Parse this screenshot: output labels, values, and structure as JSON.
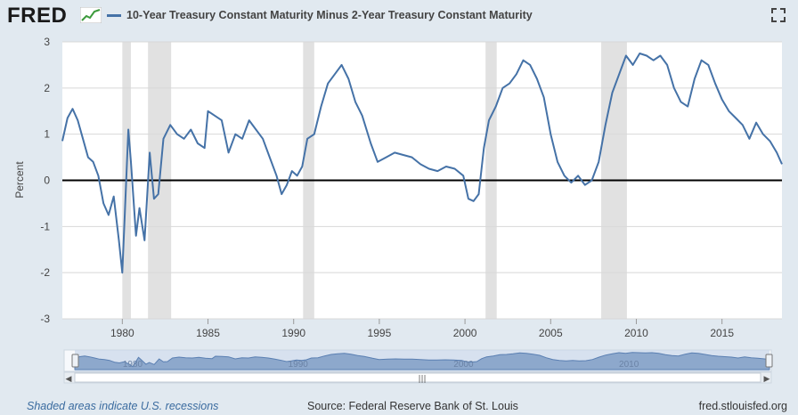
{
  "header": {
    "logo": "FRED",
    "legend_label": "10-Year Treasury Constant Maturity Minus 2-Year Treasury Constant Maturity",
    "series_color": "#4572a7"
  },
  "chart_data": {
    "type": "line",
    "title": "10-Year Treasury Constant Maturity Minus 2-Year Treasury Constant Maturity",
    "xlabel": "",
    "ylabel": "Percent",
    "xlim": [
      1976.5,
      2018.5
    ],
    "ylim": [
      -3,
      3
    ],
    "yticks": [
      -3,
      -2,
      -1,
      0,
      1,
      2,
      3
    ],
    "xticks": [
      1980,
      1985,
      1990,
      1995,
      2000,
      2005,
      2010,
      2015
    ],
    "grid": true,
    "recessions": [
      [
        1980.0,
        1980.5
      ],
      [
        1981.5,
        1982.85
      ],
      [
        1990.55,
        1991.2
      ],
      [
        2001.2,
        2001.85
      ],
      [
        2007.95,
        2009.45
      ]
    ],
    "series": [
      {
        "name": "10-Year Treasury Constant Maturity Minus 2-Year Treasury Constant Maturity",
        "color": "#4572a7",
        "x": [
          1976.5,
          1976.8,
          1977.1,
          1977.4,
          1977.7,
          1978.0,
          1978.3,
          1978.6,
          1978.9,
          1979.2,
          1979.5,
          1979.8,
          1980.0,
          1980.15,
          1980.35,
          1980.5,
          1980.8,
          1981.0,
          1981.3,
          1981.6,
          1981.85,
          1982.1,
          1982.4,
          1982.8,
          1983.2,
          1983.6,
          1984.0,
          1984.4,
          1984.8,
          1985.0,
          1985.4,
          1985.8,
          1986.2,
          1986.6,
          1987.0,
          1987.4,
          1987.8,
          1988.2,
          1988.6,
          1989.0,
          1989.3,
          1989.6,
          1989.9,
          1990.2,
          1990.5,
          1990.8,
          1991.2,
          1991.6,
          1992.0,
          1992.4,
          1992.8,
          1993.2,
          1993.6,
          1994.0,
          1994.5,
          1994.9,
          1995.4,
          1995.9,
          1996.4,
          1996.9,
          1997.4,
          1997.9,
          1998.4,
          1998.9,
          1999.4,
          1999.9,
          2000.2,
          2000.5,
          2000.8,
          2001.1,
          2001.4,
          2001.8,
          2002.2,
          2002.6,
          2003.0,
          2003.4,
          2003.8,
          2004.2,
          2004.6,
          2005.0,
          2005.4,
          2005.8,
          2006.2,
          2006.6,
          2007.0,
          2007.4,
          2007.8,
          2008.2,
          2008.6,
          2009.0,
          2009.4,
          2009.8,
          2010.2,
          2010.6,
          2011.0,
          2011.4,
          2011.8,
          2012.2,
          2012.6,
          2013.0,
          2013.4,
          2013.8,
          2014.2,
          2014.6,
          2015.0,
          2015.4,
          2015.8,
          2016.2,
          2016.6,
          2017.0,
          2017.4,
          2017.8,
          2018.2,
          2018.5
        ],
        "y": [
          0.85,
          1.35,
          1.55,
          1.3,
          0.9,
          0.5,
          0.4,
          0.1,
          -0.5,
          -0.75,
          -0.35,
          -1.3,
          -2.0,
          -0.7,
          1.1,
          0.4,
          -1.2,
          -0.6,
          -1.3,
          0.6,
          -0.4,
          -0.3,
          0.9,
          1.2,
          1.0,
          0.9,
          1.1,
          0.8,
          0.7,
          1.5,
          1.4,
          1.3,
          0.6,
          1.0,
          0.9,
          1.3,
          1.1,
          0.9,
          0.5,
          0.1,
          -0.3,
          -0.1,
          0.2,
          0.1,
          0.3,
          0.9,
          1.0,
          1.6,
          2.1,
          2.3,
          2.5,
          2.2,
          1.7,
          1.4,
          0.8,
          0.4,
          0.5,
          0.6,
          0.55,
          0.5,
          0.35,
          0.25,
          0.2,
          0.3,
          0.25,
          0.1,
          -0.4,
          -0.45,
          -0.3,
          0.7,
          1.3,
          1.6,
          2.0,
          2.1,
          2.3,
          2.6,
          2.5,
          2.2,
          1.8,
          1.0,
          0.4,
          0.1,
          -0.05,
          0.1,
          -0.1,
          0.0,
          0.4,
          1.2,
          1.9,
          2.3,
          2.7,
          2.5,
          2.75,
          2.7,
          2.6,
          2.7,
          2.5,
          2.0,
          1.7,
          1.6,
          2.2,
          2.6,
          2.5,
          2.1,
          1.75,
          1.5,
          1.35,
          1.2,
          0.9,
          1.25,
          1.0,
          0.85,
          0.6,
          0.35
        ]
      }
    ]
  },
  "navigator": {
    "labels": [
      "1980",
      "1990",
      "2000",
      "2010"
    ]
  },
  "footer": {
    "note": "Shaded areas indicate U.S. recessions",
    "source": "Source: Federal Reserve Bank of St. Louis",
    "url": "fred.stlouisfed.org"
  }
}
